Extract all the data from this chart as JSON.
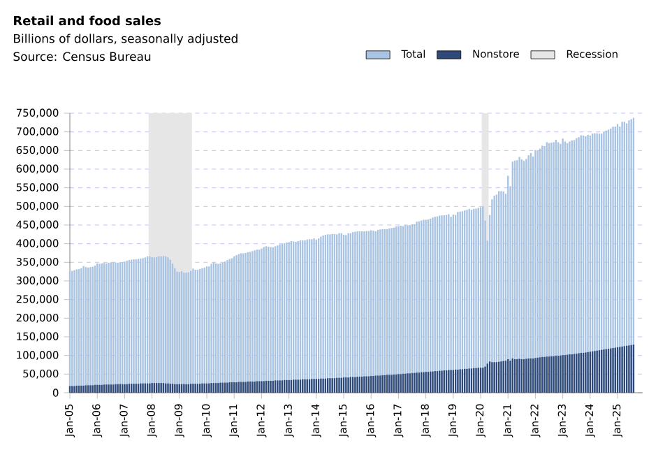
{
  "chart_data": {
    "type": "bar",
    "title": "Retail and food sales",
    "subtitle": "Billions of dollars, seasonally adjusted",
    "annotations": [
      "Source: Census Bureau"
    ],
    "x": [
      "2005-01",
      "2005-02",
      "2005-03",
      "2005-04",
      "2005-05",
      "2005-06",
      "2005-07",
      "2005-08",
      "2005-09",
      "2005-10",
      "2005-11",
      "2005-12",
      "2006-01",
      "2006-02",
      "2006-03",
      "2006-04",
      "2006-05",
      "2006-06",
      "2006-07",
      "2006-08",
      "2006-09",
      "2006-10",
      "2006-11",
      "2006-12",
      "2007-01",
      "2007-02",
      "2007-03",
      "2007-04",
      "2007-05",
      "2007-06",
      "2007-07",
      "2007-08",
      "2007-09",
      "2007-10",
      "2007-11",
      "2007-12",
      "2008-01",
      "2008-02",
      "2008-03",
      "2008-04",
      "2008-05",
      "2008-06",
      "2008-07",
      "2008-08",
      "2008-09",
      "2008-10",
      "2008-11",
      "2008-12",
      "2009-01",
      "2009-02",
      "2009-03",
      "2009-04",
      "2009-05",
      "2009-06",
      "2009-07",
      "2009-08",
      "2009-09",
      "2009-10",
      "2009-11",
      "2009-12",
      "2010-01",
      "2010-02",
      "2010-03",
      "2010-04",
      "2010-05",
      "2010-06",
      "2010-07",
      "2010-08",
      "2010-09",
      "2010-10",
      "2010-11",
      "2010-12",
      "2011-01",
      "2011-02",
      "2011-03",
      "2011-04",
      "2011-05",
      "2011-06",
      "2011-07",
      "2011-08",
      "2011-09",
      "2011-10",
      "2011-11",
      "2011-12",
      "2012-01",
      "2012-02",
      "2012-03",
      "2012-04",
      "2012-05",
      "2012-06",
      "2012-07",
      "2012-08",
      "2012-09",
      "2012-10",
      "2012-11",
      "2012-12",
      "2013-01",
      "2013-02",
      "2013-03",
      "2013-04",
      "2013-05",
      "2013-06",
      "2013-07",
      "2013-08",
      "2013-09",
      "2013-10",
      "2013-11",
      "2013-12",
      "2014-01",
      "2014-02",
      "2014-03",
      "2014-04",
      "2014-05",
      "2014-06",
      "2014-07",
      "2014-08",
      "2014-09",
      "2014-10",
      "2014-11",
      "2014-12",
      "2015-01",
      "2015-02",
      "2015-03",
      "2015-04",
      "2015-05",
      "2015-06",
      "2015-07",
      "2015-08",
      "2015-09",
      "2015-10",
      "2015-11",
      "2015-12",
      "2016-01",
      "2016-02",
      "2016-03",
      "2016-04",
      "2016-05",
      "2016-06",
      "2016-07",
      "2016-08",
      "2016-09",
      "2016-10",
      "2016-11",
      "2016-12",
      "2017-01",
      "2017-02",
      "2017-03",
      "2017-04",
      "2017-05",
      "2017-06",
      "2017-07",
      "2017-08",
      "2017-09",
      "2017-10",
      "2017-11",
      "2017-12",
      "2018-01",
      "2018-02",
      "2018-03",
      "2018-04",
      "2018-05",
      "2018-06",
      "2018-07",
      "2018-08",
      "2018-09",
      "2018-10",
      "2018-11",
      "2018-12",
      "2019-01",
      "2019-02",
      "2019-03",
      "2019-04",
      "2019-05",
      "2019-06",
      "2019-07",
      "2019-08",
      "2019-09",
      "2019-10",
      "2019-11",
      "2019-12",
      "2020-01",
      "2020-02",
      "2020-03",
      "2020-04",
      "2020-05",
      "2020-06",
      "2020-07",
      "2020-08",
      "2020-09",
      "2020-10",
      "2020-11",
      "2020-12",
      "2021-01",
      "2021-02",
      "2021-03",
      "2021-04",
      "2021-05",
      "2021-06",
      "2021-07",
      "2021-08",
      "2021-09",
      "2021-10",
      "2021-11",
      "2021-12",
      "2022-01",
      "2022-02",
      "2022-03",
      "2022-04",
      "2022-05",
      "2022-06",
      "2022-07",
      "2022-08",
      "2022-09",
      "2022-10",
      "2022-11",
      "2022-12",
      "2023-01",
      "2023-02",
      "2023-03",
      "2023-04",
      "2023-05",
      "2023-06",
      "2023-07",
      "2023-08",
      "2023-09",
      "2023-10",
      "2023-11",
      "2023-12",
      "2024-01",
      "2024-02",
      "2024-03",
      "2024-04",
      "2024-05",
      "2024-06",
      "2024-07",
      "2024-08",
      "2024-09",
      "2024-10",
      "2024-11",
      "2024-12",
      "2025-01",
      "2025-02",
      "2025-03",
      "2025-04",
      "2025-05",
      "2025-06",
      "2025-07",
      "2025-08"
    ],
    "series": [
      {
        "name": "Total",
        "color": "#a9c3e3",
        "values": [
          325000,
          327000,
          329000,
          331000,
          332000,
          334000,
          340000,
          337000,
          336000,
          337000,
          338000,
          341000,
          347000,
          346000,
          347000,
          348000,
          347000,
          349000,
          350000,
          350000,
          349000,
          349000,
          350000,
          350000,
          352000,
          354000,
          356000,
          357000,
          358000,
          358000,
          359000,
          360000,
          361000,
          363000,
          366000,
          366000,
          364000,
          363000,
          364000,
          366000,
          366000,
          367000,
          366000,
          363000,
          357000,
          346000,
          334000,
          325000,
          324000,
          326000,
          322000,
          322000,
          323000,
          327000,
          333000,
          330000,
          330000,
          332000,
          334000,
          336000,
          339000,
          339000,
          346000,
          350000,
          347000,
          346000,
          347000,
          349000,
          352000,
          356000,
          359000,
          361000,
          366000,
          369000,
          372000,
          374000,
          374000,
          375000,
          377000,
          378000,
          380000,
          382000,
          384000,
          384000,
          387000,
          391000,
          393000,
          392000,
          391000,
          390000,
          393000,
          395000,
          398000,
          399000,
          401000,
          403000,
          404000,
          407000,
          406000,
          405000,
          407000,
          409000,
          409000,
          409000,
          411000,
          412000,
          412000,
          414000,
          411000,
          414000,
          419000,
          422000,
          424000,
          425000,
          425000,
          426000,
          426000,
          425000,
          428000,
          428000,
          424000,
          423000,
          428000,
          428000,
          431000,
          432000,
          433000,
          433000,
          433000,
          433000,
          434000,
          434000,
          436000,
          435000,
          433000,
          437000,
          438000,
          439000,
          439000,
          439000,
          441000,
          442000,
          443000,
          446000,
          447000,
          448000,
          447000,
          450000,
          449000,
          450000,
          452000,
          452000,
          459000,
          460000,
          462000,
          464000,
          464000,
          465000,
          467000,
          470000,
          472000,
          473000,
          475000,
          476000,
          476000,
          477000,
          479000,
          472000,
          478000,
          477000,
          485000,
          486000,
          487000,
          489000,
          491000,
          493000,
          491000,
          493000,
          494000,
          496000,
          498000,
          500000,
          462000,
          408000,
          477000,
          519000,
          529000,
          532000,
          541000,
          541000,
          540000,
          534000,
          582000,
          554000,
          620000,
          623000,
          624000,
          633000,
          626000,
          622000,
          627000,
          637000,
          643000,
          634000,
          651000,
          650000,
          655000,
          663000,
          662000,
          672000,
          670000,
          671000,
          672000,
          679000,
          672000,
          668000,
          682000,
          674000,
          670000,
          674000,
          677000,
          678000,
          683000,
          686000,
          691000,
          690000,
          688000,
          692000,
          690000,
          695000,
          696000,
          696000,
          695000,
          695000,
          701000,
          703000,
          706000,
          709000,
          714000,
          714000,
          721000,
          714000,
          727000,
          727000,
          723000,
          731000,
          734000,
          738000
        ]
      },
      {
        "name": "Nonstore",
        "color": "#2f4a78",
        "values": [
          18000,
          18000,
          18000,
          19000,
          19000,
          19000,
          19000,
          20000,
          20000,
          20000,
          20000,
          21000,
          21000,
          21000,
          21000,
          22000,
          22000,
          22000,
          22000,
          22000,
          23000,
          23000,
          23000,
          23000,
          23000,
          23000,
          24000,
          24000,
          24000,
          24000,
          24000,
          25000,
          25000,
          25000,
          25000,
          25000,
          26000,
          26000,
          26000,
          26000,
          26000,
          26000,
          25000,
          25000,
          24000,
          24000,
          23000,
          23000,
          23000,
          23000,
          23000,
          23000,
          23000,
          24000,
          24000,
          24000,
          24000,
          24000,
          25000,
          25000,
          25000,
          25000,
          26000,
          26000,
          26000,
          26000,
          27000,
          27000,
          27000,
          27000,
          28000,
          28000,
          28000,
          28000,
          29000,
          29000,
          29000,
          29000,
          30000,
          30000,
          30000,
          30000,
          31000,
          31000,
          31000,
          31000,
          32000,
          32000,
          32000,
          32000,
          33000,
          33000,
          33000,
          33000,
          34000,
          34000,
          34000,
          34000,
          35000,
          35000,
          35000,
          35000,
          36000,
          36000,
          36000,
          36000,
          37000,
          37000,
          37000,
          37000,
          38000,
          38000,
          38000,
          39000,
          39000,
          39000,
          39000,
          40000,
          40000,
          40000,
          41000,
          41000,
          41000,
          42000,
          42000,
          42000,
          43000,
          43000,
          43000,
          44000,
          44000,
          44000,
          45000,
          45000,
          46000,
          46000,
          46000,
          47000,
          47000,
          48000,
          48000,
          48000,
          49000,
          49000,
          50000,
          50000,
          51000,
          51000,
          52000,
          52000,
          53000,
          53000,
          54000,
          54000,
          55000,
          55000,
          56000,
          56000,
          57000,
          57000,
          58000,
          58000,
          59000,
          59000,
          60000,
          60000,
          61000,
          61000,
          61000,
          62000,
          62000,
          63000,
          63000,
          64000,
          64000,
          65000,
          65000,
          66000,
          66000,
          67000,
          67000,
          67000,
          70000,
          78000,
          84000,
          82000,
          82000,
          82000,
          83000,
          84000,
          85000,
          86000,
          90000,
          86000,
          92000,
          90000,
          90000,
          91000,
          90000,
          90000,
          91000,
          92000,
          92000,
          92000,
          93000,
          94000,
          95000,
          96000,
          96000,
          97000,
          97000,
          98000,
          98000,
          99000,
          99000,
          100000,
          101000,
          101000,
          102000,
          103000,
          103000,
          104000,
          105000,
          106000,
          107000,
          107000,
          108000,
          109000,
          110000,
          111000,
          112000,
          113000,
          114000,
          115000,
          116000,
          117000,
          118000,
          119000,
          120000,
          121000,
          122000,
          123000,
          124000,
          125000,
          126000,
          127000,
          128000,
          129000
        ]
      }
    ],
    "xlim": [
      "2005-01",
      "2025-12"
    ],
    "xticks": [
      {
        "value": "2005-01",
        "label": "Jan-05"
      },
      {
        "value": "2006-01",
        "label": "Jan-06"
      },
      {
        "value": "2007-01",
        "label": "Jan-07"
      },
      {
        "value": "2008-01",
        "label": "Jan-08"
      },
      {
        "value": "2009-01",
        "label": "Jan-09"
      },
      {
        "value": "2010-01",
        "label": "Jan-10"
      },
      {
        "value": "2011-01",
        "label": "Jan-11"
      },
      {
        "value": "2012-01",
        "label": "Jan-12"
      },
      {
        "value": "2013-01",
        "label": "Jan-13"
      },
      {
        "value": "2014-01",
        "label": "Jan-14"
      },
      {
        "value": "2015-01",
        "label": "Jan-15"
      },
      {
        "value": "2016-01",
        "label": "Jan-16"
      },
      {
        "value": "2017-01",
        "label": "Jan-17"
      },
      {
        "value": "2018-01",
        "label": "Jan-18"
      },
      {
        "value": "2019-01",
        "label": "Jan-19"
      },
      {
        "value": "2020-01",
        "label": "Jan-20"
      },
      {
        "value": "2021-01",
        "label": "Jan-21"
      },
      {
        "value": "2022-01",
        "label": "Jan-22"
      },
      {
        "value": "2023-01",
        "label": "Jan-23"
      },
      {
        "value": "2024-01",
        "label": "Jan-24"
      },
      {
        "value": "2025-01",
        "label": "Jan-25"
      }
    ],
    "ylim": [
      0,
      750000
    ],
    "yticks": [
      {
        "value": 0,
        "label": "0"
      },
      {
        "value": 50000,
        "label": "50,000"
      },
      {
        "value": 100000,
        "label": "100,000"
      },
      {
        "value": 150000,
        "label": "150,000"
      },
      {
        "value": 200000,
        "label": "200,000"
      },
      {
        "value": 250000,
        "label": "250,000"
      },
      {
        "value": 300000,
        "label": "300,000"
      },
      {
        "value": 350000,
        "label": "350,000"
      },
      {
        "value": 400000,
        "label": "400,000"
      },
      {
        "value": 450000,
        "label": "450,000"
      },
      {
        "value": 500000,
        "label": "500,000"
      },
      {
        "value": 550000,
        "label": "550,000"
      },
      {
        "value": 600000,
        "label": "600,000"
      },
      {
        "value": 650000,
        "label": "650,000"
      },
      {
        "value": 700000,
        "label": "700,000"
      },
      {
        "value": 750000,
        "label": "750,000"
      }
    ],
    "bands": [
      {
        "axis": "x",
        "from": "2007-12",
        "to": "2009-06",
        "label": "Recession",
        "color": "#e6e6e6"
      },
      {
        "axis": "x",
        "from": "2020-02",
        "to": "2020-04",
        "color": "#e6e6e6"
      }
    ],
    "grid": "y",
    "legend": "top right"
  }
}
